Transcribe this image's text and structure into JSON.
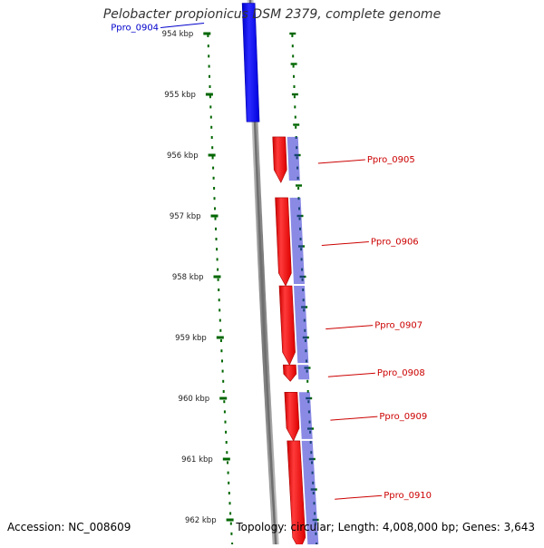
{
  "title": "Pelobacter propionicus DSM 2379, complete genome",
  "footer": {
    "accession": "Accession: NC_008609",
    "topology": "Topology: circular; Length: 4,008,000 bp; Genes: 3,643"
  },
  "colors": {
    "backbone": "#888888",
    "forward_gene": "#ff0000",
    "reverse_gene": "#0000ff",
    "ruler": "#006600",
    "label_forward": "#cc0000",
    "label_reverse": "#0000cc"
  },
  "scale": {
    "unit": "kbp",
    "ticks": [
      {
        "label": "954 kbp",
        "kbp": 954
      },
      {
        "label": "955 kbp",
        "kbp": 955
      },
      {
        "label": "956 kbp",
        "kbp": 956
      },
      {
        "label": "957 kbp",
        "kbp": 957
      },
      {
        "label": "958 kbp",
        "kbp": 958
      },
      {
        "label": "959 kbp",
        "kbp": 959
      },
      {
        "label": "960 kbp",
        "kbp": 960
      },
      {
        "label": "961 kbp",
        "kbp": 961
      },
      {
        "label": "962 kbp",
        "kbp": 962
      }
    ]
  },
  "genes": [
    {
      "id": "Ppro_0904",
      "strand": "reverse",
      "start_kbp": 953.5,
      "end_kbp": 955.45
    },
    {
      "id": "Ppro_0905",
      "strand": "forward",
      "start_kbp": 955.7,
      "end_kbp": 956.45
    },
    {
      "id": "Ppro_0906",
      "strand": "forward",
      "start_kbp": 956.7,
      "end_kbp": 958.15
    },
    {
      "id": "Ppro_0907",
      "strand": "forward",
      "start_kbp": 958.15,
      "end_kbp": 959.45
    },
    {
      "id": "Ppro_0908",
      "strand": "forward",
      "start_kbp": 959.45,
      "end_kbp": 959.72
    },
    {
      "id": "Ppro_0909",
      "strand": "forward",
      "start_kbp": 959.9,
      "end_kbp": 960.7
    },
    {
      "id": "Ppro_0910",
      "strand": "forward",
      "start_kbp": 960.7,
      "end_kbp": 962.5
    }
  ]
}
